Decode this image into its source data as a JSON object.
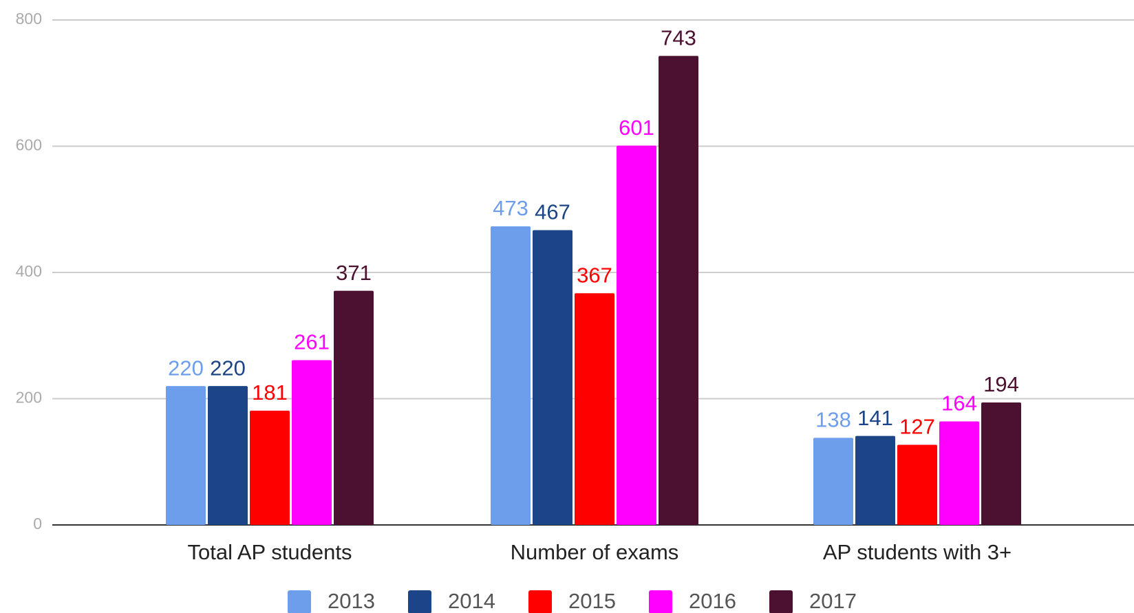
{
  "chart_data": {
    "type": "bar",
    "categories": [
      "Total AP students",
      "Number of exams",
      "AP students with 3+"
    ],
    "series": [
      {
        "name": "2013",
        "color": "#6d9eeb",
        "values": [
          220,
          473,
          138
        ]
      },
      {
        "name": "2014",
        "color": "#1c4587",
        "values": [
          220,
          467,
          141
        ]
      },
      {
        "name": "2015",
        "color": "#ff0000",
        "values": [
          181,
          367,
          127
        ]
      },
      {
        "name": "2016",
        "color": "#ff00ff",
        "values": [
          261,
          601,
          164
        ]
      },
      {
        "name": "2017",
        "color": "#4c1130",
        "values": [
          371,
          743,
          194
        ]
      }
    ],
    "ylim": [
      0,
      800
    ],
    "yticks": [
      0,
      200,
      400,
      600,
      800
    ],
    "grid": true,
    "legend": "bottom"
  }
}
